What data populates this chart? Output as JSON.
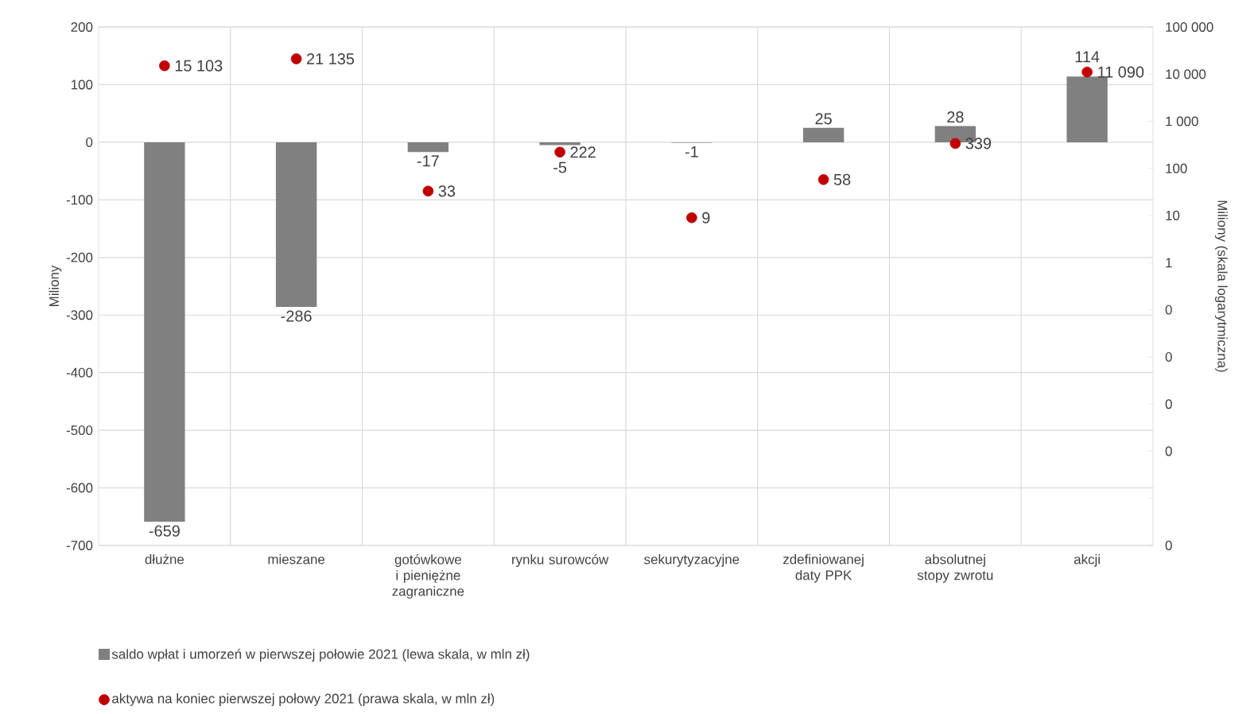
{
  "chart_data": {
    "type": "bar",
    "categories": [
      "dłużne",
      "mieszane",
      "gotówkowe i pieniężne zagraniczne",
      "rynku surowców",
      "sekurytyzacyjne",
      "zdefiniowanej daty PPK",
      "absolutnej stopy zwrotu",
      "akcji"
    ],
    "series": [
      {
        "name": "saldo wpłat i umorzeń w pierwszej połowie 2021 (lewa skala, w mln zł)",
        "color": "#808080",
        "values": [
          -659,
          -286,
          -17,
          -5,
          -1,
          25,
          28,
          114
        ],
        "value_labels": [
          "-659",
          "-286",
          "-17",
          "-5",
          "-1",
          "25",
          "28",
          "114"
        ]
      },
      {
        "name": "aktywa na koniec pierwszej połowy 2021 (prawa skala, w mln zł)",
        "type": "scatter",
        "axis": "y2",
        "marker": "circle",
        "color": "#c00000",
        "values": [
          15103,
          21135,
          33,
          222,
          9,
          58,
          339,
          11090
        ],
        "value_labels": [
          "15 103",
          "21 135",
          "33",
          "222",
          "9",
          "58",
          "339",
          "11 090"
        ]
      }
    ],
    "ylabel": "Miliony",
    "y2label": "Miliony (skala logarytmiczna)",
    "ylim": [
      -700,
      200
    ],
    "yticks": [
      -700,
      -600,
      -500,
      -400,
      -300,
      -200,
      -100,
      0,
      100,
      200
    ],
    "y2lim": [
      1e-06,
      100000
    ],
    "y2ticks": [
      {
        "value": 1e-06,
        "label": "0"
      },
      {
        "value": 1e-05,
        "label": null
      },
      {
        "value": 0.0001,
        "label": "0"
      },
      {
        "value": 0.001,
        "label": "0"
      },
      {
        "value": 0.01,
        "label": "0"
      },
      {
        "value": 0.1,
        "label": "0"
      },
      1,
      10,
      100,
      {
        "value": 1000,
        "label": "1 000"
      },
      {
        "value": 10000,
        "label": "10 000"
      },
      {
        "value": 100000,
        "label": "100 000"
      }
    ],
    "log": "y2",
    "grid": true,
    "legend": "bottom"
  }
}
